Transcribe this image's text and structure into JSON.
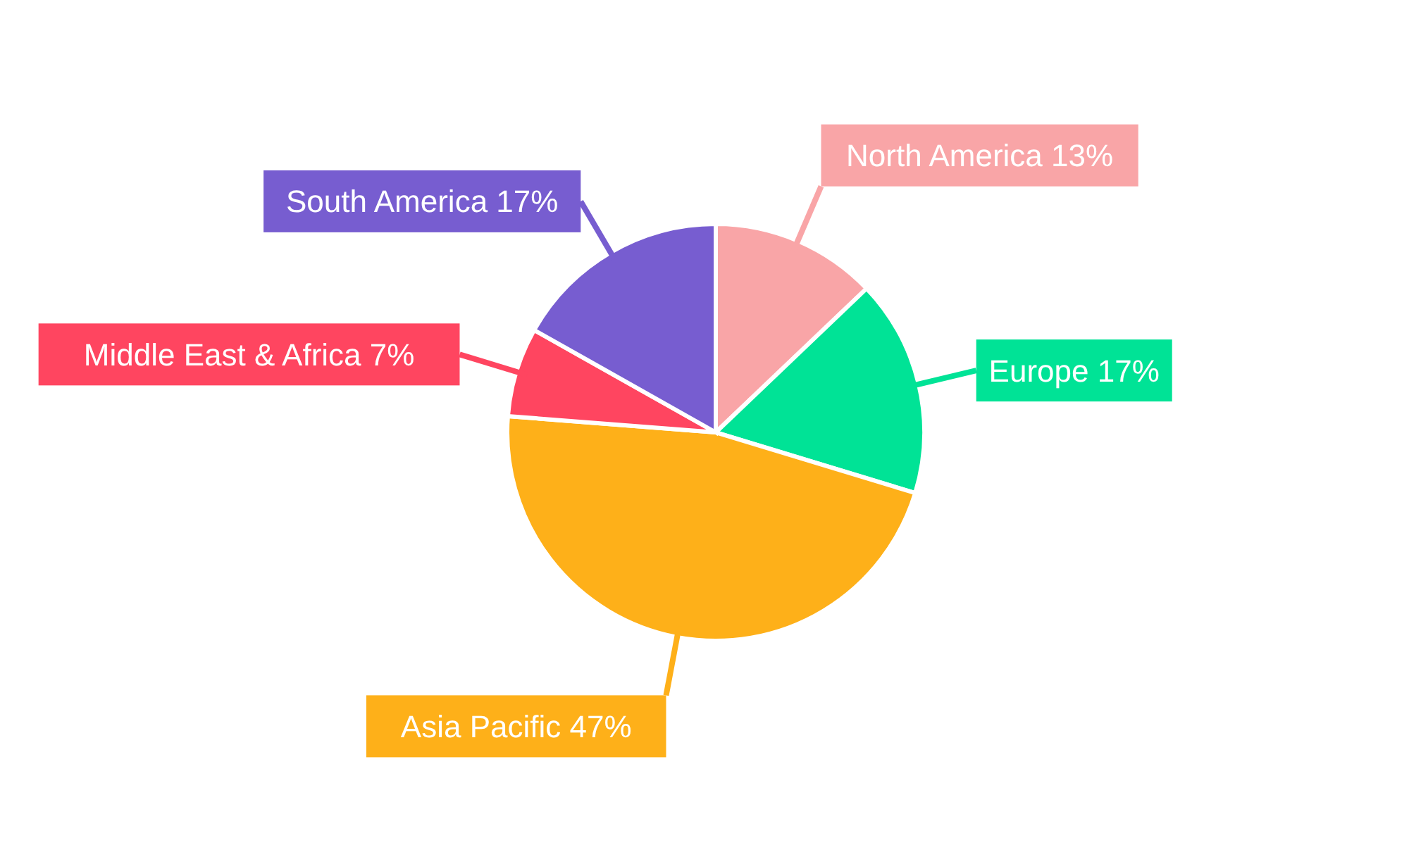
{
  "chart_data": {
    "type": "pie",
    "categories": [
      "North America",
      "Europe",
      "Asia Pacific",
      "Middle East & Africa",
      "South America"
    ],
    "values": [
      13,
      17,
      47,
      7,
      17
    ],
    "value_labels": [
      "13%",
      "17%",
      "47%",
      "7%",
      "17%"
    ],
    "colors": [
      "#f9a5a7",
      "#00e396",
      "#feb019",
      "#ff4560",
      "#775dd0"
    ]
  }
}
